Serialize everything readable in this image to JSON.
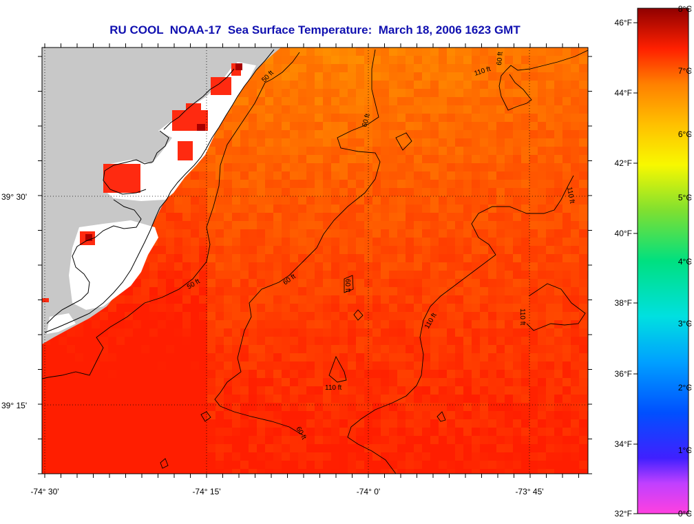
{
  "title": "RU COOL  NOAA-17  Sea Surface Temperature:  March 18, 2006 1623 GMT",
  "map": {
    "x_axis_labels": [
      "-74° 30'",
      "-74° 15'",
      "-74° 0'",
      "-73° 45'"
    ],
    "y_axis_labels": [
      "39° 30'",
      "39° 15'"
    ],
    "contour_labels": [
      "50 ft",
      "50 ft",
      "60 ft",
      "60 ft",
      "60 ft",
      "60 ft",
      "60 ft",
      "110 ft",
      "110 ft",
      "110 ft",
      "110 ft",
      "110 ft"
    ],
    "land_color": "#c8c8c8",
    "cloud_color": "#ffffff",
    "contour_color": "#000000"
  },
  "colorbar": {
    "fahrenheit_labels": [
      "46°F",
      "44°F",
      "42°F",
      "40°F",
      "38°F",
      "36°F",
      "34°F",
      "32°F"
    ],
    "celsius_labels": [
      "8°C",
      "7°C",
      "6°C",
      "5°C",
      "4°C",
      "3°C",
      "2°C",
      "1°C",
      "0°C"
    ],
    "range_celsius": [
      0,
      8
    ],
    "colors": [
      "#ff40e0",
      "#a040f0",
      "#3030ff",
      "#0070ff",
      "#00b0ff",
      "#00e0e0",
      "#00e090",
      "#60e040",
      "#c0f000",
      "#ffff00",
      "#ffc000",
      "#ff8000",
      "#ff2000",
      "#a00000"
    ]
  }
}
